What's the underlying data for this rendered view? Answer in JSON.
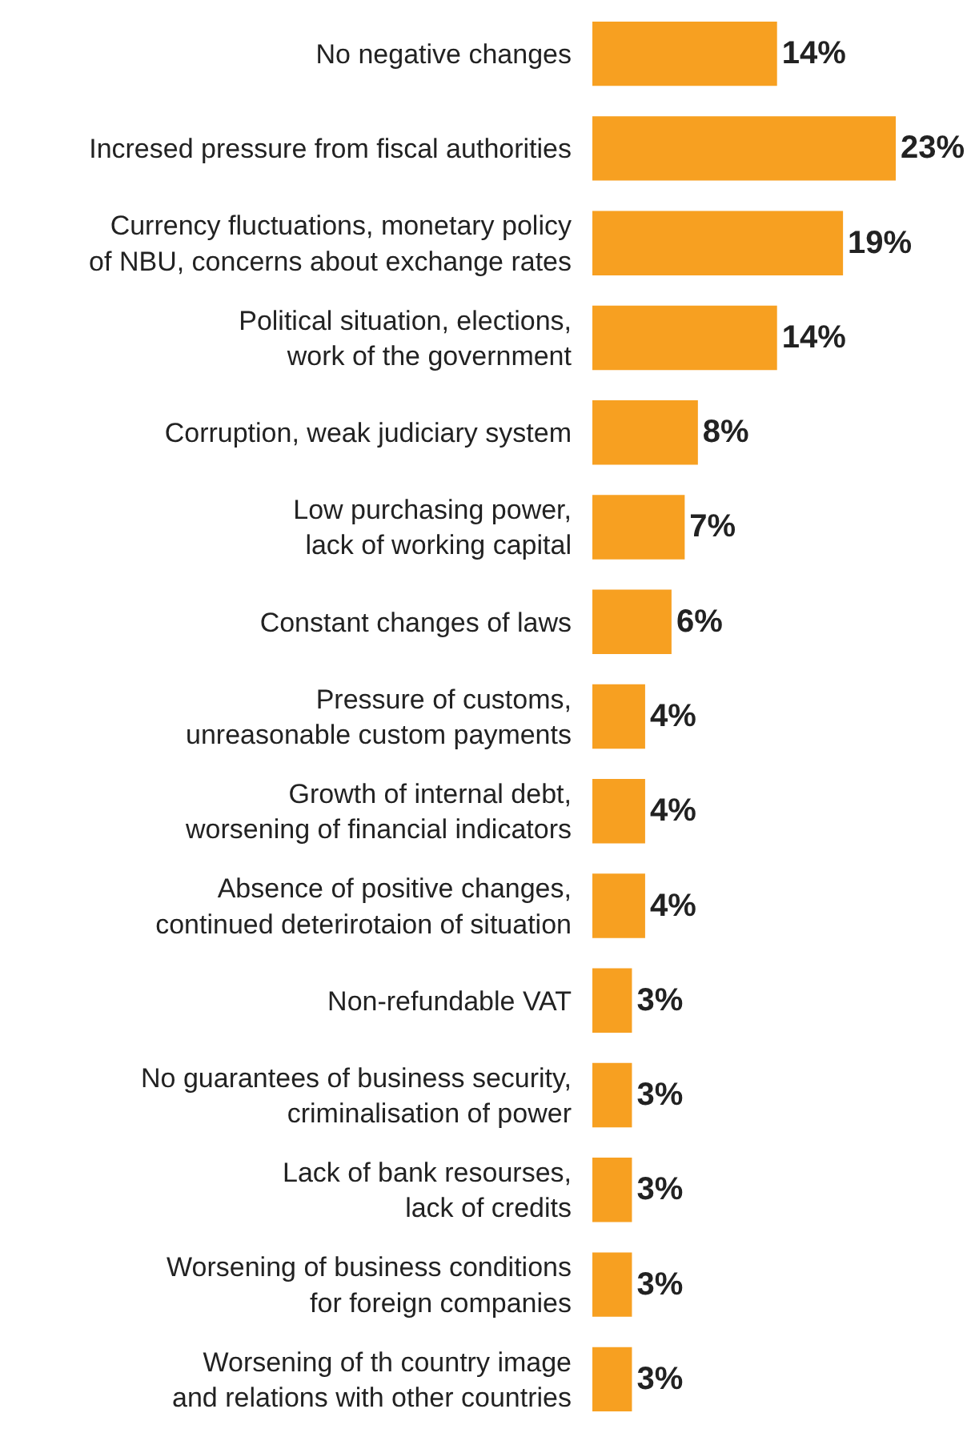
{
  "chart_data": {
    "type": "bar",
    "orientation": "horizontal",
    "categories": [
      "No negative changes",
      "Incresed pressure from fiscal authorities",
      "Currency fluctuations, monetary policy\nof NBU, concerns about exchange rates",
      "Political situation, elections,\nwork of the government",
      "Corruption, weak judiciary system",
      "Low purchasing power,\nlack of working capital",
      "Constant changes of laws",
      "Pressure of customs,\nunreasonable custom payments",
      "Growth of internal debt,\nworsening of financial indicators",
      "Absence of positive changes,\ncontinued deterirotaion of situation",
      "Non-refundable VAT",
      "No guarantees of business security,\ncriminalisation of power",
      "Lack of bank resourses,\nlack of credits",
      "Worsening of business conditions\nfor foreign companies",
      "Worsening of th country image\nand relations with other countries"
    ],
    "values": [
      14,
      23,
      19,
      14,
      8,
      7,
      6,
      4,
      4,
      4,
      3,
      3,
      3,
      3,
      3
    ],
    "value_labels": [
      "14%",
      "23%",
      "19%",
      "14%",
      "8%",
      "7%",
      "6%",
      "4%",
      "4%",
      "4%",
      "3%",
      "3%",
      "3%",
      "3%",
      "3%"
    ],
    "color": "#f7a021",
    "legend": false
  }
}
